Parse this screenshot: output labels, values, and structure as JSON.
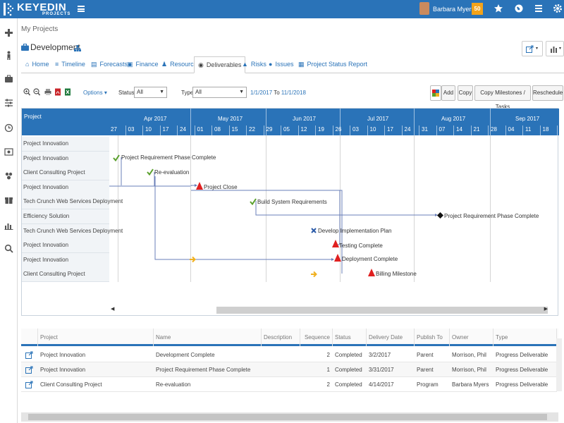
{
  "app": {
    "brand": "KEYEDIN",
    "brand_sub": "PROJECTS",
    "brand_color": "#2a73b8",
    "user_name": "Barbara Myers",
    "notification_count": "50",
    "top_icons": [
      "star-icon",
      "globe-icon",
      "list-icon",
      "gear-icon"
    ]
  },
  "sidebar": {
    "icons": [
      "plus-icon",
      "person-icon",
      "briefcase-icon",
      "sliders-icon",
      "clock-icon",
      "dollar-icon",
      "group-icon",
      "gift-icon",
      "chart-icon",
      "search-icon"
    ]
  },
  "breadcrumb": "My Projects",
  "page": {
    "title": "Development"
  },
  "tabs": [
    {
      "label": "Home",
      "icon": "home-icon"
    },
    {
      "label": "Timeline",
      "icon": "timeline-icon"
    },
    {
      "label": "Forecasts",
      "icon": "forecast-icon"
    },
    {
      "label": "Finance",
      "icon": "finance-icon"
    },
    {
      "label": "Resource",
      "icon": "resource-icon"
    },
    {
      "label": "Deliverables",
      "icon": "deliverables-icon",
      "active": true
    },
    {
      "label": "Risks",
      "icon": "warning-icon"
    },
    {
      "label": "Issues",
      "icon": "info-icon"
    },
    {
      "label": "Project Status Report",
      "icon": "report-icon"
    }
  ],
  "toolbar": {
    "options_label": "Options",
    "status_label": "Status",
    "status_value": "All",
    "type_label": "Type",
    "type_value": "All",
    "date_from": "1/1/2017",
    "date_to_word": "To",
    "date_to": "11/1/2018",
    "add_label": "Add",
    "copy_label": "Copy",
    "copy_milestones_label": "Copy Milestones / Tasks",
    "reschedule_label": "Reschedule"
  },
  "gantt": {
    "left_header": "Project",
    "months": [
      "Apr 2017",
      "May 2017",
      "Jun 2017",
      "Jul 2017",
      "Aug 2017",
      "Sep 2017"
    ],
    "weeks": [
      "27",
      "03",
      "10",
      "17",
      "24",
      "01",
      "08",
      "15",
      "22",
      "29",
      "05",
      "12",
      "19",
      "26",
      "03",
      "10",
      "17",
      "24",
      "31",
      "07",
      "14",
      "21",
      "28",
      "04",
      "11",
      "18",
      "25"
    ],
    "rows": [
      "Project Innovation",
      "Project Innovation",
      "Client Consulting Project",
      "Project Innovation",
      "Tech Crunch Web Services Deployment",
      "Efficiency Solution",
      "Tech Crunch Web Services Deployment",
      "Project Innovation",
      "Project Innovation",
      "Client Consulting Project"
    ],
    "milestones": [
      {
        "label": "Project Requirement Phase Complete",
        "marker": "check"
      },
      {
        "label": "Re-evaluation",
        "marker": "check"
      },
      {
        "label": "Project Close",
        "marker": "triangle"
      },
      {
        "label": "Build System Requirements",
        "marker": "check"
      },
      {
        "label": "Project Requirement Phase Complete",
        "marker": "diamond"
      },
      {
        "label": "Develop Implementation Plan",
        "marker": "x"
      },
      {
        "label": "Testing Complete",
        "marker": "triangle"
      },
      {
        "label": "Deployment Complete",
        "marker": "triangle"
      },
      {
        "label": "Billing Milestone",
        "marker": "triangle"
      }
    ]
  },
  "table": {
    "columns": [
      "Project",
      "Name",
      "Description",
      "Sequence",
      "Status",
      "Delivery Date",
      "Publish To",
      "Owner",
      "Type"
    ],
    "rows": [
      {
        "project": "Project Innovation",
        "name": "Development Complete",
        "description": "",
        "sequence": "2",
        "status": "Completed",
        "delivery_date": "3/2/2017",
        "publish_to": "Parent",
        "owner": "Morrison, Phil",
        "type": "Progress Deliverable"
      },
      {
        "project": "Project Innovation",
        "name": "Project Requirement Phase Complete",
        "description": "",
        "sequence": "1",
        "status": "Completed",
        "delivery_date": "3/31/2017",
        "publish_to": "Parent",
        "owner": "Morrison, Phil",
        "type": "Progress Deliverable"
      },
      {
        "project": "Client Consulting Project",
        "name": "Re-evaluation",
        "description": "",
        "sequence": "2",
        "status": "Completed",
        "delivery_date": "4/14/2017",
        "publish_to": "Program",
        "owner": "Barbara Myers",
        "type": "Progress Deliverable"
      }
    ]
  },
  "colors": {
    "check": "#5aa02c",
    "triangle": "#e02020",
    "arrow": "#f0b020",
    "xmark": "#2a5aa8",
    "link_line": "#6a7fb8"
  }
}
